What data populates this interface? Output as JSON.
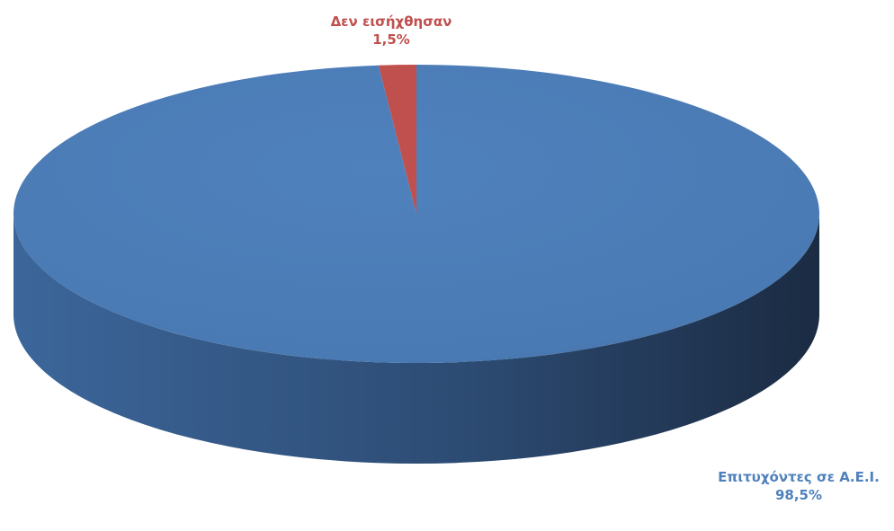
{
  "chart_data": {
    "type": "pie",
    "style": "3d",
    "slices": [
      {
        "label": "Επιτυχόντες σε Α.Ε.Ι.",
        "value_text": "98,5%",
        "value": 98.5,
        "color": "#4F81BD"
      },
      {
        "label": "Δεν εισήχθησαν",
        "value_text": "1,5%",
        "value": 1.5,
        "color": "#C0504D"
      }
    ]
  }
}
